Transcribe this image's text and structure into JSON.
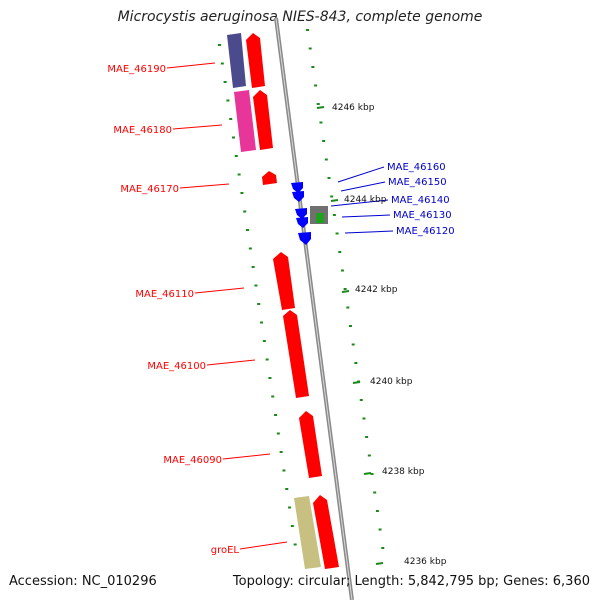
{
  "title": "Microcystis aeruginosa NIES-843, complete genome",
  "footer": {
    "accession": "Accession: NC_010296",
    "stats": "Topology: circular; Length: 5,842,795 bp; Genes: 6,360"
  },
  "scale_labels": [
    "4246 kbp",
    "4244 kbp",
    "4242 kbp",
    "4240 kbp",
    "4238 kbp",
    "4236 kbp"
  ],
  "colors": {
    "backbone": "#8a8a8a",
    "forward_gene": "#ff0000",
    "reverse_gene_label": "#0000cc",
    "ticks": "#1a8a1a",
    "purple_feature": "#4b4a8c",
    "magenta_feature": "#e8359a",
    "olive_feature": "#c8c080",
    "gray_feature": "#707070",
    "green_feature": "#1fa01f"
  },
  "genes": [
    {
      "label": "MAE_46190",
      "color": "red"
    },
    {
      "label": "MAE_46180",
      "color": "red"
    },
    {
      "label": "MAE_46170",
      "color": "red"
    },
    {
      "label": "MAE_46160",
      "color": "blue"
    },
    {
      "label": "MAE_46150",
      "color": "blue"
    },
    {
      "label": "MAE_46140",
      "color": "blue"
    },
    {
      "label": "MAE_46130",
      "color": "blue"
    },
    {
      "label": "MAE_46120",
      "color": "blue"
    },
    {
      "label": "MAE_46110",
      "color": "red"
    },
    {
      "label": "MAE_46100",
      "color": "red"
    },
    {
      "label": "MAE_46090",
      "color": "red"
    },
    {
      "label": "groEL",
      "color": "red"
    }
  ]
}
